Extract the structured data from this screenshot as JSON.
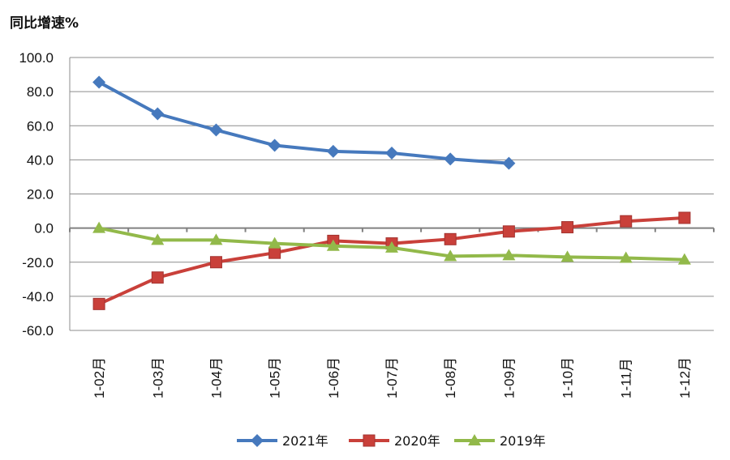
{
  "chart_data": {
    "type": "line",
    "title": "",
    "ylabel": "同比增速%",
    "xlabel": "",
    "ylim": [
      -60,
      100
    ],
    "yticks": [
      100,
      80,
      60,
      40,
      20,
      0,
      -20,
      -40,
      -60
    ],
    "ytick_labels": [
      "100.0",
      "80.0",
      "60.0",
      "40.0",
      "20.0",
      "0.0",
      "-20.0",
      "-40.0",
      "-60.0"
    ],
    "grid": true,
    "legend": "bottom",
    "categories": [
      "1-02月",
      "1-03月",
      "1-04月",
      "1-05月",
      "1-06月",
      "1-07月",
      "1-08月",
      "1-09月",
      "1-10月",
      "1-11月",
      "1-12月"
    ],
    "series": [
      {
        "name": "2021年",
        "color": "#4679BD",
        "marker": "diamond",
        "values": [
          85.5,
          67.0,
          57.5,
          48.5,
          45.0,
          44.0,
          40.5,
          38.0,
          null,
          null,
          null
        ]
      },
      {
        "name": "2020年",
        "color": "#C9403A",
        "marker": "square",
        "values": [
          -44.5,
          -29.0,
          -20.0,
          -14.5,
          -7.5,
          -9.0,
          -6.5,
          -2.0,
          0.5,
          4.0,
          6.0
        ]
      },
      {
        "name": "2019年",
        "color": "#92B94A",
        "marker": "triangle",
        "values": [
          0.0,
          -7.0,
          -7.0,
          -9.0,
          -10.5,
          -11.5,
          -16.5,
          -16.0,
          -17.0,
          -17.5,
          -18.5
        ]
      }
    ]
  }
}
